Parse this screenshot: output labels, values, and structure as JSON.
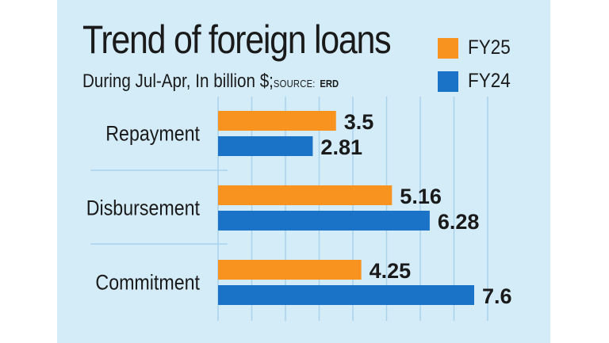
{
  "title": "Trend of foreign loans",
  "subtitle": "During Jul-Apr, In billion $;",
  "source_label": "SOURCE:",
  "source_value": "ERD",
  "colors": {
    "background": "#d4ecf8",
    "fy25": "#f7931e",
    "fy24": "#1a73c6",
    "grid": "#a9d2ec",
    "text": "#1a1a1a"
  },
  "legend": [
    {
      "label": "FY25",
      "color": "#f7931e"
    },
    {
      "label": "FY24",
      "color": "#1a73c6"
    }
  ],
  "chart_data": {
    "type": "bar",
    "orientation": "horizontal",
    "title": "Trend of foreign loans",
    "subtitle": "During Jul-Apr, In billion $; SOURCE: ERD",
    "categories": [
      "Repayment",
      "Disbursement",
      "Commitment"
    ],
    "series": [
      {
        "name": "FY25",
        "color": "#f7931e",
        "values": [
          3.5,
          5.16,
          4.25
        ],
        "labels": [
          "3.5",
          "5.16",
          "4.25"
        ]
      },
      {
        "name": "FY24",
        "color": "#1a73c6",
        "values": [
          2.81,
          6.28,
          7.6
        ],
        "labels": [
          "2.81",
          "6.28",
          "7.6"
        ]
      }
    ],
    "xlim": [
      0,
      8
    ],
    "grid": true,
    "legend_position": "top-right"
  }
}
